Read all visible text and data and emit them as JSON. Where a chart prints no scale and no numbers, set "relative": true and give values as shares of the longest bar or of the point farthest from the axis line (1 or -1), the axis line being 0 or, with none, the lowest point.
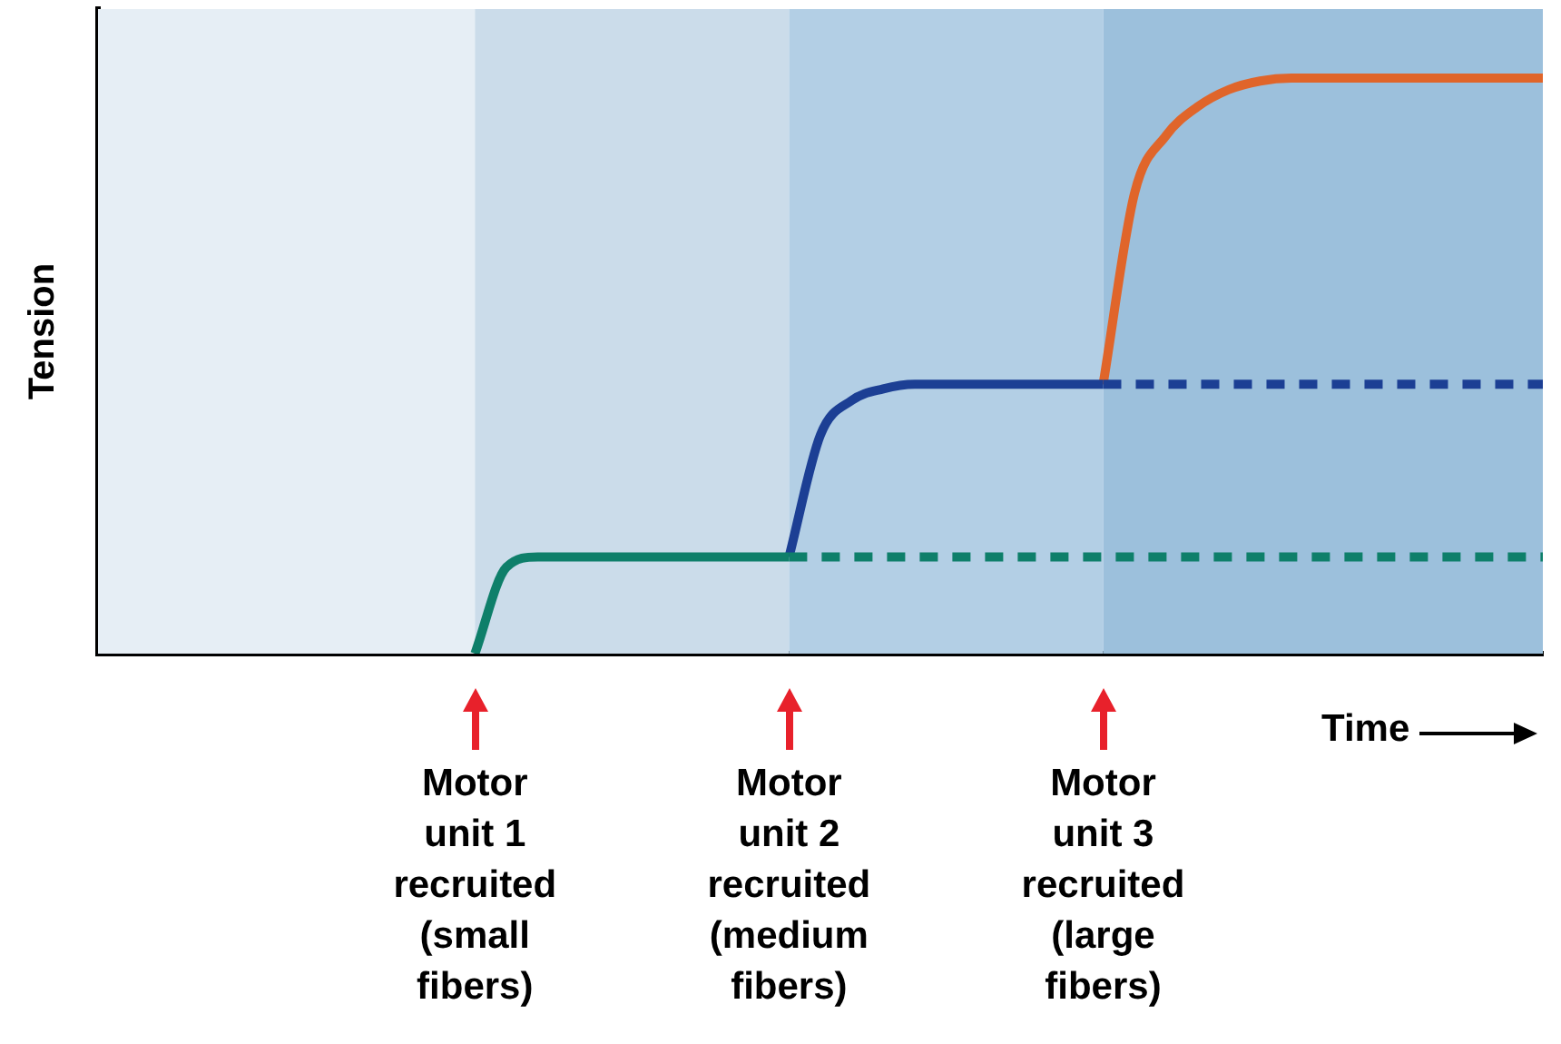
{
  "chart_data": {
    "type": "line",
    "relative": true,
    "xlabel": "Time",
    "ylabel": "Tension",
    "grid": false,
    "legend": false,
    "marker": "none",
    "categories": [
      null,
      null,
      null,
      null,
      null,
      null,
      null,
      null,
      null,
      null,
      null,
      null,
      null,
      null,
      null,
      null,
      null,
      null,
      null,
      null,
      null,
      null,
      null,
      null,
      null,
      null,
      null,
      null,
      null,
      null,
      null,
      null,
      null,
      null,
      null,
      null,
      null,
      null,
      null,
      null,
      null,
      null,
      null,
      null,
      null,
      null,
      null
    ],
    "series": [
      {
        "color": "#0e7f6a",
        "line_style": "solid",
        "values": [
          null,
          null,
          null,
          null,
          null,
          null,
          null,
          null,
          null,
          null,
          null,
          null,
          0,
          0.15,
          0.168,
          0.168,
          0.168,
          0.168,
          0.168,
          0.168,
          0.168,
          0.168,
          0.168,
          null,
          null,
          null,
          null,
          null,
          null,
          null,
          null,
          null,
          null,
          null,
          null,
          null,
          null,
          null,
          null,
          null,
          null,
          null,
          null,
          null,
          null,
          null,
          null
        ]
      },
      {
        "color": "#0e7f6a",
        "line_style": "dashed",
        "values": [
          null,
          null,
          null,
          null,
          null,
          null,
          null,
          null,
          null,
          null,
          null,
          null,
          null,
          null,
          null,
          null,
          null,
          null,
          null,
          null,
          null,
          null,
          0.168,
          0.168,
          0.168,
          0.168,
          0.168,
          0.168,
          0.168,
          0.168,
          0.168,
          0.168,
          0.168,
          0.168,
          0.168,
          0.168,
          0.168,
          0.168,
          0.168,
          0.168,
          0.168,
          0.168,
          0.168,
          0.168,
          0.168,
          0.168,
          0.168
        ]
      },
      {
        "color": "#1c3f94",
        "line_style": "solid",
        "values": [
          null,
          null,
          null,
          null,
          null,
          null,
          null,
          null,
          null,
          null,
          null,
          null,
          null,
          null,
          null,
          null,
          null,
          null,
          null,
          null,
          null,
          null,
          0.168,
          0.38,
          0.44,
          0.46,
          0.468,
          0.468,
          0.468,
          0.468,
          0.468,
          0.468,
          0.468,
          null,
          null,
          null,
          null,
          null,
          null,
          null,
          null,
          null,
          null,
          null,
          null,
          null,
          null
        ]
      },
      {
        "color": "#1c3f94",
        "line_style": "dashed",
        "values": [
          null,
          null,
          null,
          null,
          null,
          null,
          null,
          null,
          null,
          null,
          null,
          null,
          null,
          null,
          null,
          null,
          null,
          null,
          null,
          null,
          null,
          null,
          null,
          null,
          null,
          null,
          null,
          null,
          null,
          null,
          null,
          null,
          0.468,
          0.468,
          0.468,
          0.468,
          0.468,
          0.468,
          0.468,
          0.468,
          0.468,
          0.468,
          0.468,
          0.468,
          0.468,
          0.468,
          0.468
        ]
      },
      {
        "color": "#e0652a",
        "line_style": "solid",
        "values": [
          null,
          null,
          null,
          null,
          null,
          null,
          null,
          null,
          null,
          null,
          null,
          null,
          null,
          null,
          null,
          null,
          null,
          null,
          null,
          null,
          null,
          null,
          null,
          null,
          null,
          null,
          null,
          null,
          null,
          null,
          null,
          null,
          0.468,
          0.8,
          0.9,
          0.95,
          0.98,
          0.995,
          1,
          1,
          1,
          1,
          1,
          1,
          1,
          1,
          1
        ]
      }
    ],
    "annotations": [
      "Motor\nunit 1\nrecruited\n(small\nfibers)",
      "Motor\nunit 2\nrecruited\n(medium\nfibers)",
      "Motor\nunit 3\nrecruited\n(large\nfibers)"
    ]
  }
}
